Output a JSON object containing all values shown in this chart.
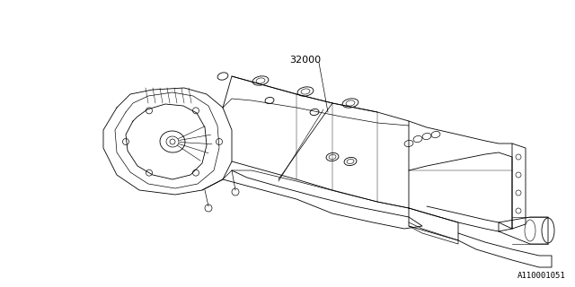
{
  "background_color": "#ffffff",
  "line_color": "#000000",
  "line_color_gray": "#888888",
  "line_width": 0.6,
  "part_number": "32000",
  "diagram_id": "A110001051",
  "part_number_fontsize": 8,
  "diagram_id_fontsize": 6.5,
  "figsize": [
    6.4,
    3.2
  ],
  "dpi": 100
}
